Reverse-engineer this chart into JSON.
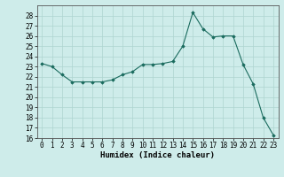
{
  "x": [
    0,
    1,
    2,
    3,
    4,
    5,
    6,
    7,
    8,
    9,
    10,
    11,
    12,
    13,
    14,
    15,
    16,
    17,
    18,
    19,
    20,
    21,
    22,
    23
  ],
  "y": [
    23.3,
    23.0,
    22.2,
    21.5,
    21.5,
    21.5,
    21.5,
    21.7,
    22.2,
    22.5,
    23.2,
    23.2,
    23.3,
    23.5,
    25.0,
    28.3,
    26.7,
    25.9,
    26.0,
    26.0,
    23.2,
    21.3,
    18.0,
    16.3
  ],
  "xlabel": "Humidex (Indice chaleur)",
  "ylim": [
    16,
    29
  ],
  "xlim": [
    -0.5,
    23.5
  ],
  "yticks": [
    16,
    17,
    18,
    19,
    20,
    21,
    22,
    23,
    24,
    25,
    26,
    27,
    28
  ],
  "xticks": [
    0,
    1,
    2,
    3,
    4,
    5,
    6,
    7,
    8,
    9,
    10,
    11,
    12,
    13,
    14,
    15,
    16,
    17,
    18,
    19,
    20,
    21,
    22,
    23
  ],
  "line_color": "#1a6b5e",
  "marker": "D",
  "marker_size": 1.8,
  "bg_color": "#ceecea",
  "grid_color": "#aed4d0",
  "tick_fontsize": 5.5,
  "label_fontsize": 6.5
}
